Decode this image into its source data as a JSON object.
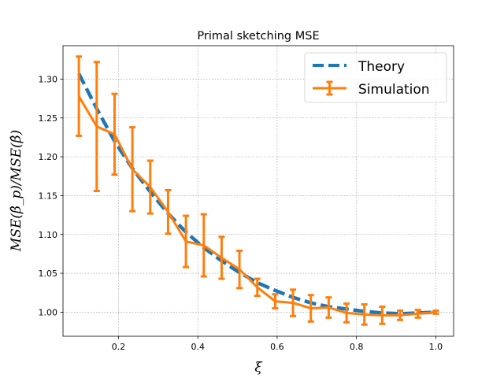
{
  "chart_data": {
    "type": "line",
    "title": "Primal sketching MSE",
    "xlabel": "ξ",
    "ylabel": "MSE(β̂_p)/MSE(β̂)",
    "xlim": [
      0.06,
      1.045
    ],
    "ylim": [
      0.969,
      1.343
    ],
    "xticks": [
      0.2,
      0.4,
      0.6,
      0.8,
      1.0
    ],
    "xtick_labels": [
      "0.2",
      "0.4",
      "0.6",
      "0.8",
      "1.0"
    ],
    "yticks": [
      1.0,
      1.05,
      1.1,
      1.15,
      1.2,
      1.25,
      1.3
    ],
    "ytick_labels": [
      "1.00",
      "1.05",
      "1.10",
      "1.15",
      "1.20",
      "1.25",
      "1.30"
    ],
    "grid": true,
    "legend_position": "top-right",
    "series": [
      {
        "name": "Theory",
        "style": "dashed",
        "color": "#1f77b4",
        "x": [
          0.1,
          0.145,
          0.19,
          0.235,
          0.28,
          0.325,
          0.37,
          0.415,
          0.46,
          0.505,
          0.55,
          0.595,
          0.64,
          0.685,
          0.73,
          0.775,
          0.82,
          0.865,
          0.91,
          0.955,
          1.0
        ],
        "y": [
          1.307,
          1.262,
          1.22,
          1.185,
          1.155,
          1.127,
          1.103,
          1.083,
          1.066,
          1.051,
          1.038,
          1.028,
          1.019,
          1.012,
          1.007,
          1.004,
          1.001,
          0.999,
          0.998,
          0.999,
          1.0
        ]
      },
      {
        "name": "Simulation",
        "style": "solid",
        "color": "#ff7f0e",
        "x": [
          0.1,
          0.145,
          0.19,
          0.235,
          0.28,
          0.325,
          0.37,
          0.415,
          0.46,
          0.505,
          0.55,
          0.595,
          0.64,
          0.685,
          0.73,
          0.775,
          0.82,
          0.865,
          0.91,
          0.955,
          1.0
        ],
        "y": [
          1.278,
          1.239,
          1.229,
          1.184,
          1.161,
          1.129,
          1.091,
          1.086,
          1.07,
          1.055,
          1.032,
          1.014,
          1.012,
          1.005,
          1.006,
          0.999,
          0.997,
          0.996,
          0.996,
          0.998,
          1.0
        ],
        "yerr": [
          0.051,
          0.083,
          0.052,
          0.054,
          0.034,
          0.028,
          0.033,
          0.04,
          0.027,
          0.024,
          0.011,
          0.009,
          0.017,
          0.017,
          0.013,
          0.012,
          0.013,
          0.011,
          0.006,
          0.005,
          0.002
        ]
      }
    ]
  }
}
